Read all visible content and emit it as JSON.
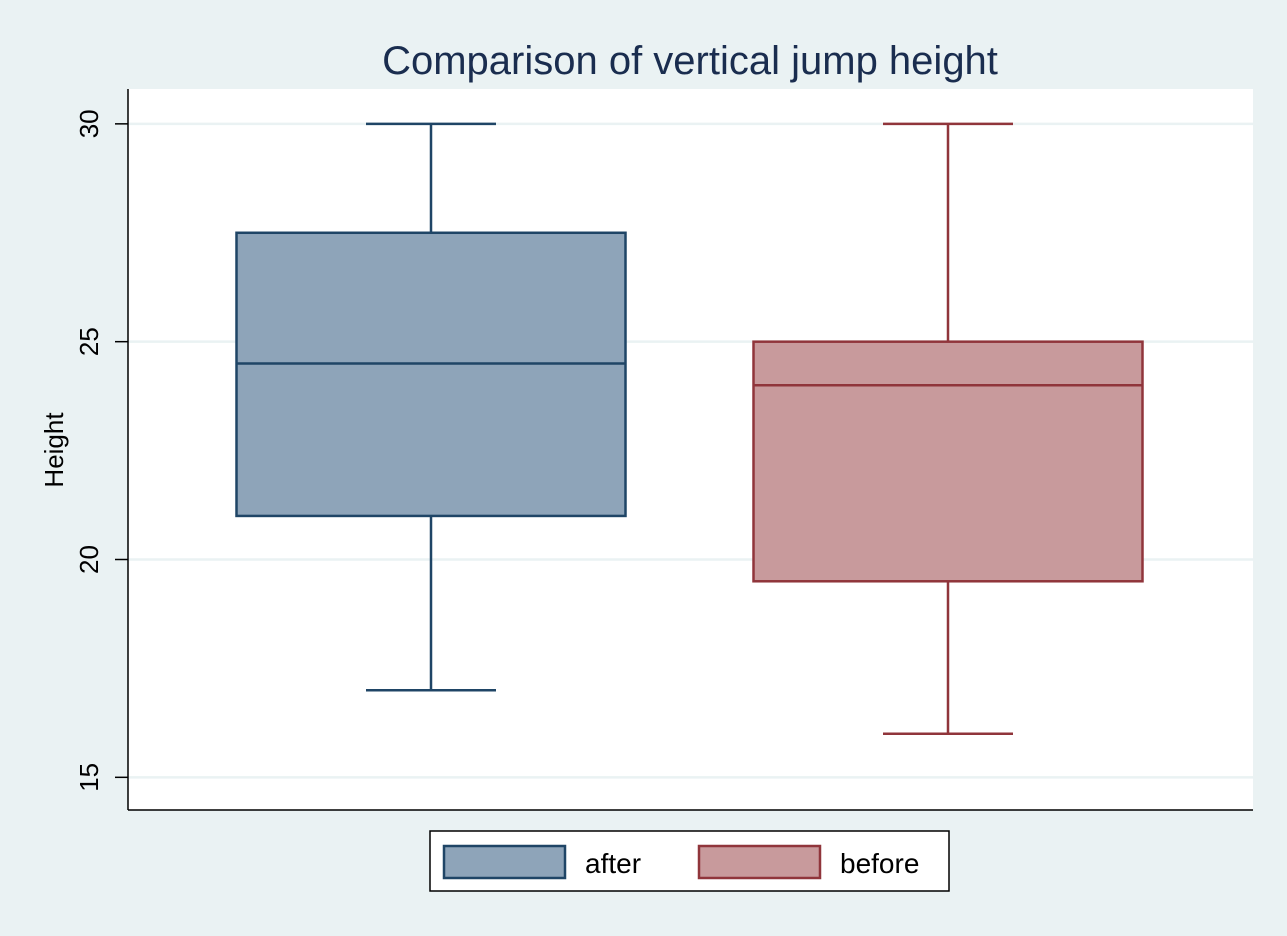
{
  "chart_data": {
    "type": "boxplot",
    "title": "Comparison of vertical jump height",
    "ylabel": "Height",
    "xlabel": "",
    "ylim": [
      14.25,
      30.8
    ],
    "yticks": [
      15,
      20,
      25,
      30
    ],
    "grid": true,
    "legend_position": "bottom",
    "series": [
      {
        "name": "after",
        "min": 17,
        "q1": 21,
        "median": 24.5,
        "q3": 27.5,
        "max": 30,
        "fill": "#8ea4b9",
        "stroke": "#1f4566"
      },
      {
        "name": "before",
        "min": 16,
        "q1": 19.5,
        "median": 24,
        "q3": 25,
        "max": 30,
        "fill": "#c89a9c",
        "stroke": "#90353b"
      }
    ]
  },
  "colors": {
    "page_background": "#eaf2f3",
    "plot_background": "#ffffff",
    "grid": "#eaf2f3",
    "title": "#1a2d4f"
  }
}
